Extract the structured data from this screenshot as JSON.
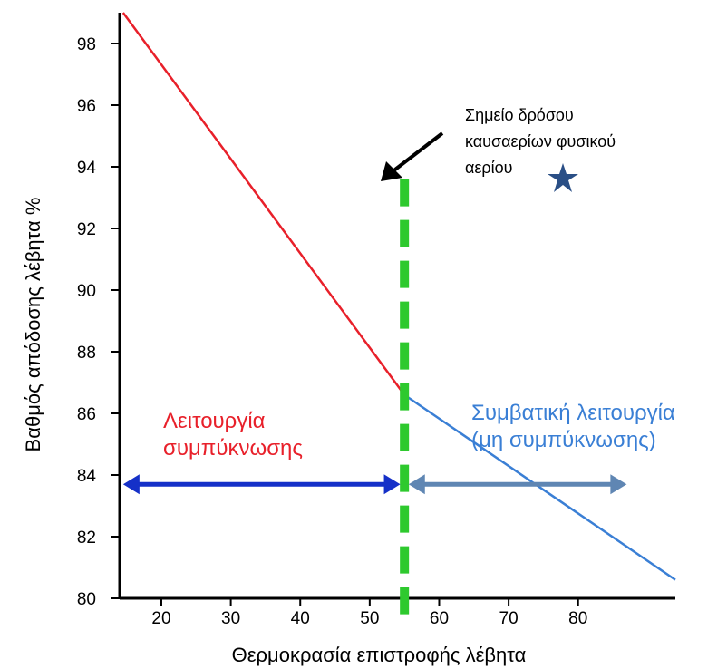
{
  "chart_data": {
    "type": "line",
    "xlabel": "Θερμοκρασία επιστροφής λέβητα",
    "ylabel": "Βαθμός απόδοσης λέβητα %",
    "x_ticks": [
      20,
      30,
      40,
      50,
      60,
      70,
      80
    ],
    "y_ticks": [
      80,
      82,
      84,
      86,
      88,
      90,
      92,
      94,
      96,
      98
    ],
    "xlim": [
      14,
      94
    ],
    "ylim": [
      80,
      99
    ],
    "series": [
      {
        "color": "#e8202a",
        "x": [
          14.5,
          55
        ],
        "y": [
          99,
          86.6
        ]
      },
      {
        "color": "#3a7fd5",
        "x": [
          55,
          94
        ],
        "y": [
          86.6,
          80.6
        ]
      }
    ],
    "dew_point": {
      "x": 55,
      "y_top": 93.6,
      "color": "#2ec92e"
    },
    "dew_point_label": [
      "Σημείο δρόσου",
      "καυσαερίων φυσικού",
      "αερίου"
    ],
    "condensing_label": [
      "Λειτουργία",
      "συμπύκνωσης"
    ],
    "condensing_color": "#e8202a",
    "condensing_range": [
      14.5,
      55
    ],
    "condensing_arrow_color": "#1530c8",
    "conventional_label": [
      "Συμβατική λειτουργία",
      "(μη συμπύκνωσης)"
    ],
    "conventional_color": "#3a7fd5",
    "conventional_range": [
      55,
      87
    ],
    "conventional_arrow_color": "#5f86b3",
    "arrow_y": 83.7,
    "star_color": "#2a4f86"
  }
}
